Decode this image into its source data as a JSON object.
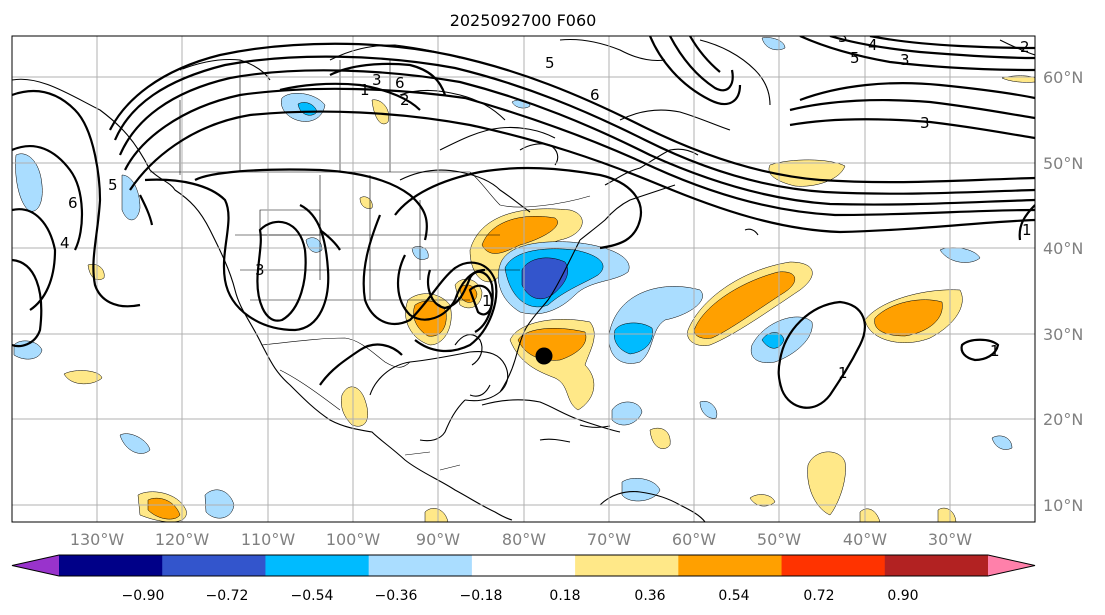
{
  "title": "2025092700 F060",
  "map": {
    "lon_labels": [
      "130°W",
      "120°W",
      "110°W",
      "100°W",
      "90°W",
      "80°W",
      "70°W",
      "60°W",
      "50°W",
      "40°W",
      "30°W"
    ],
    "lat_labels": [
      "60°N",
      "50°N",
      "40°N",
      "30°N",
      "20°N",
      "10°N"
    ],
    "contour_labels": [
      "6",
      "5",
      "4",
      "3",
      "2",
      "1",
      "3",
      "6",
      "5",
      "6",
      "5",
      "4",
      "3",
      "2",
      "1",
      "3",
      "3",
      "1",
      "1",
      "1"
    ],
    "storm_marker": "storm-center"
  },
  "colorbar": {
    "ticks": [
      "−0.90",
      "−0.72",
      "−0.54",
      "−0.36",
      "−0.18",
      "0.18",
      "0.36",
      "0.54",
      "0.72",
      "0.90"
    ],
    "colors": [
      "#9933cc",
      "#000088",
      "#3355cc",
      "#00bbff",
      "#aaddff",
      "#ffffff",
      "#ffe888",
      "#ffa000",
      "#ff3300",
      "#b22222",
      "#ff80aa"
    ]
  },
  "colors": {
    "pos_light": "#ffe888",
    "pos_mid": "#ffa000",
    "neg_light": "#aaddff",
    "neg_mid": "#00bbff",
    "neg_dark": "#3355cc",
    "grid": "#b0b0b0",
    "axis_label": "#808080"
  }
}
